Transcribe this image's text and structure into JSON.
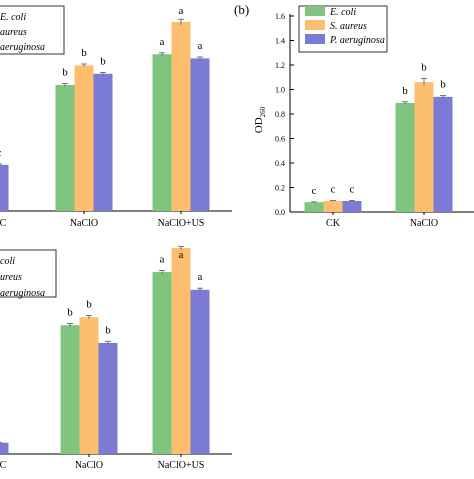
{
  "figure": {
    "panel_b_label": "(b)",
    "od_label_main": "OD",
    "od_label_sub": "260"
  },
  "colors": {
    "e_coli": "#7FC47F",
    "s_aureus": "#FDBF6F",
    "p_aeruginosa": "#7B7BD6",
    "axis": "#000000"
  },
  "chart_data": [
    {
      "type": "bar",
      "panel": "top-left (cropped)",
      "categories": [
        "CK",
        "NaClO",
        "NaClO+US"
      ],
      "visible_tick_labels": [
        "C",
        "NaClO",
        "NaClO+US"
      ],
      "series": [
        {
          "name": "E. coli",
          "values": [
            null,
            0.9,
            1.12
          ],
          "errors": [
            null,
            0.01,
            0.01
          ]
        },
        {
          "name": "S. aureus",
          "values": [
            0.28,
            1.04,
            1.35
          ],
          "errors": [
            0.005,
            0.01,
            0.02
          ]
        },
        {
          "name": "P. aeruginosa",
          "values": [
            0.33,
            0.98,
            1.09
          ],
          "errors": [
            0.006,
            0.01,
            0.01
          ]
        }
      ],
      "letters": [
        [
          null,
          "c",
          "c"
        ],
        [
          "b",
          "b",
          "b"
        ],
        [
          "a",
          "a",
          "a"
        ]
      ],
      "legend": {
        "entries": [
          "E. coli",
          "S. aureus",
          "P. aeruginosa"
        ],
        "visible_text": [
          "E. coli",
          "aureus",
          "aeruginosa"
        ]
      },
      "ylim": [
        0,
        1.5
      ],
      "xlabel": "",
      "ylabel": ""
    },
    {
      "type": "bar",
      "panel": "b",
      "title": "(b)",
      "categories": [
        "CK",
        "NaClO"
      ],
      "series": [
        {
          "name": "E. coli",
          "values": [
            0.08,
            0.89
          ],
          "errors": [
            0.003,
            0.01
          ]
        },
        {
          "name": "S. aureus",
          "values": [
            0.09,
            1.06
          ],
          "errors": [
            0.003,
            0.03
          ]
        },
        {
          "name": "P. aeruginosa",
          "values": [
            0.09,
            0.94
          ],
          "errors": [
            0.003,
            0.01
          ]
        }
      ],
      "letters": [
        [
          "c",
          "c",
          "c"
        ],
        [
          "b",
          "b",
          "b"
        ]
      ],
      "legend": {
        "entries": [
          "E. coli",
          "S. aureus",
          "P. aeruginosa"
        ],
        "placement": "top-left"
      },
      "ylabel": "OD260",
      "yticks": [
        "0.0",
        "0.2",
        "0.4",
        "0.6",
        "0.8",
        "1.0",
        "1.2",
        "1.4",
        "1.6"
      ],
      "ylim": [
        0,
        1.6
      ]
    },
    {
      "type": "bar",
      "panel": "bottom-left (cropped)",
      "categories": [
        "CK",
        "NaClO",
        "NaClO+US"
      ],
      "visible_tick_labels": [
        "C",
        "NaClO",
        "NaClO+US"
      ],
      "series": [
        {
          "name": "E. coli",
          "values": [
            null,
            0.8,
            1.13
          ],
          "errors": [
            null,
            0.01,
            0.01
          ]
        },
        {
          "name": "S. aureus",
          "values": [
            0.08,
            0.85,
            1.28
          ],
          "errors": [
            0.003,
            0.01,
            0.01
          ]
        },
        {
          "name": "P. aeruginosa",
          "values": [
            0.07,
            0.69,
            1.02
          ],
          "errors": [
            0.003,
            0.01,
            0.01
          ]
        }
      ],
      "letters": [
        [
          null,
          "c",
          null
        ],
        [
          "b",
          "b",
          "b"
        ],
        [
          "a",
          "a",
          "a"
        ]
      ],
      "legend": {
        "entries": [
          "E. coli",
          "S. aureus",
          "P. aeruginosa"
        ],
        "visible_text": [
          "coli",
          "ureus",
          "aeruginosa"
        ]
      },
      "ylim": [
        0,
        1.5
      ],
      "xlabel": "",
      "ylabel": ""
    }
  ]
}
